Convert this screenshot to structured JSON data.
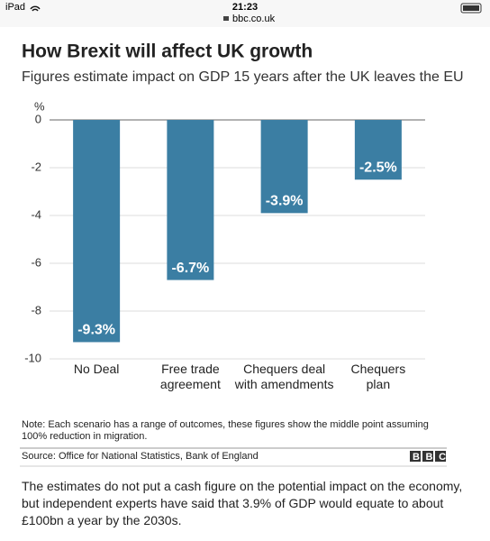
{
  "status_bar": {
    "device": "iPad",
    "time": "21:23",
    "url": "bbc.co.uk"
  },
  "chart_data": {
    "type": "bar",
    "title": "How Brexit will affect UK growth",
    "subtitle": "Figures estimate impact on GDP 15 years after the UK leaves the EU",
    "y_unit": "%",
    "categories": [
      "No Deal",
      "Free trade agreement",
      "Chequers deal with amendments",
      "Chequers plan"
    ],
    "values": [
      -9.3,
      -6.7,
      -3.9,
      -2.5
    ],
    "value_labels": [
      "-9.3%",
      "-6.7%",
      "-3.9%",
      "-2.5%"
    ],
    "color": "#3b7ea3",
    "ylim": [
      -10,
      0
    ],
    "yticks": [
      0,
      -2,
      -4,
      -6,
      -8,
      -10
    ],
    "grid": true,
    "note": "Note: Each scenario has a range of outcomes, these figures show the middle point assuming 100% reduction in migration.",
    "source": "Source: Office for National Statistics, Bank of England",
    "logo": "BBC"
  },
  "article": {
    "paragraph": "The estimates do not put a cash figure on the potential impact on the economy, but independent experts have said that 3.9% of GDP would equate to about £100bn a year by the 2030s."
  }
}
